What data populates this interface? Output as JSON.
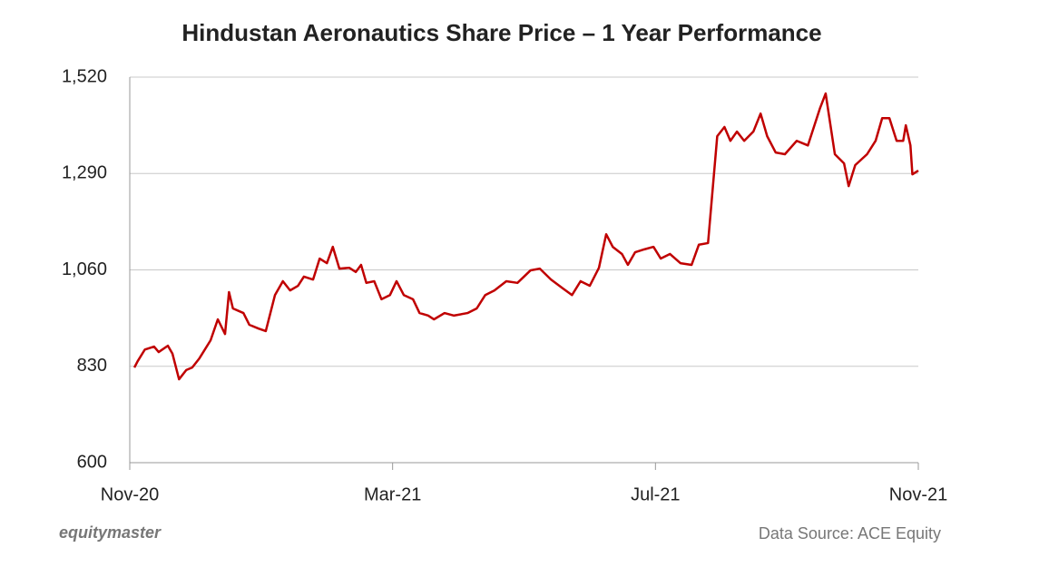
{
  "chart_data": {
    "type": "line",
    "title": "Hindustan Aeronautics Share Price – 1 Year Performance",
    "brand": "equitymaster",
    "source": "Data Source: ACE Equity",
    "xlim": [
      0,
      12
    ],
    "xticks": [
      {
        "value": 0,
        "label": "Nov-20"
      },
      {
        "value": 4,
        "label": "Mar-21"
      },
      {
        "value": 8,
        "label": "Jul-21"
      },
      {
        "value": 12,
        "label": "Nov-21"
      }
    ],
    "ylim": [
      600,
      1520
    ],
    "yticks": [
      600,
      830,
      {
        "value": 1060,
        "label": "1,060"
      },
      {
        "value": 1290,
        "label": "1,290"
      },
      {
        "value": 1520,
        "label": "1,520"
      }
    ],
    "grid": true,
    "x": [
      0.07,
      0.12,
      0.23,
      0.37,
      0.44,
      0.58,
      0.65,
      0.75,
      0.86,
      0.95,
      1.06,
      1.23,
      1.34,
      1.45,
      1.51,
      1.57,
      1.73,
      1.82,
      1.96,
      2.07,
      2.21,
      2.33,
      2.44,
      2.56,
      2.65,
      2.79,
      2.89,
      3.0,
      3.09,
      3.19,
      3.34,
      3.44,
      3.52,
      3.6,
      3.72,
      3.83,
      3.96,
      4.06,
      4.17,
      4.31,
      4.41,
      4.54,
      4.63,
      4.79,
      4.93,
      5.14,
      5.28,
      5.41,
      5.55,
      5.73,
      5.9,
      6.1,
      6.24,
      6.41,
      6.59,
      6.73,
      6.86,
      7.0,
      7.14,
      7.25,
      7.35,
      7.49,
      7.58,
      7.69,
      7.83,
      7.97,
      8.08,
      8.22,
      8.38,
      8.55,
      8.66,
      8.8,
      8.94,
      9.05,
      9.14,
      9.24,
      9.35,
      9.49,
      9.6,
      9.7,
      9.83,
      9.97,
      10.15,
      10.32,
      10.5,
      10.59,
      10.73,
      10.87,
      10.94,
      11.04,
      11.22,
      11.35,
      11.45,
      11.56,
      11.67,
      11.77,
      11.81,
      11.88,
      11.91,
      12.0
    ],
    "series": [
      {
        "name": "Share Price",
        "color": "#c00000",
        "values": [
          827,
          842,
          870,
          877,
          864,
          879,
          860,
          799,
          821,
          827,
          849,
          892,
          942,
          907,
          1007,
          968,
          957,
          929,
          920,
          914,
          1000,
          1033,
          1011,
          1022,
          1044,
          1037,
          1087,
          1076,
          1115,
          1063,
          1065,
          1055,
          1072,
          1029,
          1033,
          990,
          1000,
          1033,
          1000,
          990,
          957,
          951,
          942,
          957,
          951,
          957,
          968,
          1000,
          1011,
          1033,
          1029,
          1059,
          1063,
          1037,
          1016,
          1000,
          1033,
          1022,
          1065,
          1145,
          1115,
          1098,
          1072,
          1102,
          1109,
          1115,
          1087,
          1098,
          1076,
          1072,
          1120,
          1124,
          1379,
          1401,
          1368,
          1390,
          1368,
          1390,
          1433,
          1379,
          1340,
          1336,
          1368,
          1357,
          1444,
          1481,
          1336,
          1314,
          1260,
          1310,
          1336,
          1368,
          1422,
          1422,
          1368,
          1368,
          1405,
          1357,
          1288,
          1297
        ]
      }
    ]
  }
}
